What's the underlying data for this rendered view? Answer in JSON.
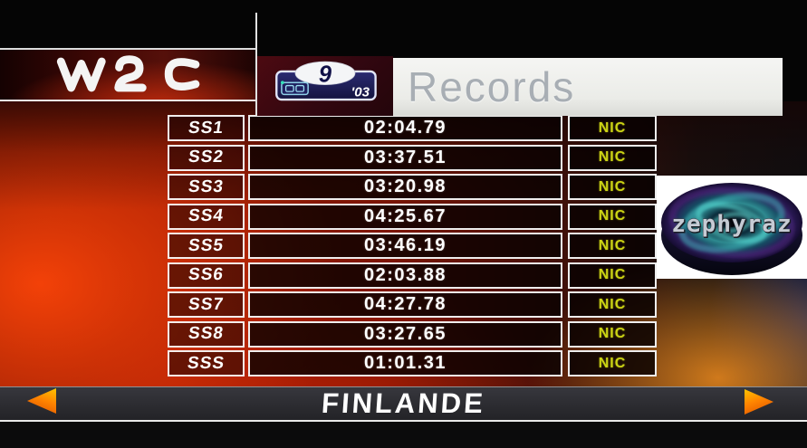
{
  "header": {
    "wrc_logo_label": "WRC",
    "section_title": "Records",
    "rally_plate": {
      "number": "9",
      "year": "'03"
    }
  },
  "records_table": {
    "rows": [
      {
        "stage": "SS1",
        "time": "02:04.79",
        "holder": "NIC"
      },
      {
        "stage": "SS2",
        "time": "03:37.51",
        "holder": "NIC"
      },
      {
        "stage": "SS3",
        "time": "03:20.98",
        "holder": "NIC"
      },
      {
        "stage": "SS4",
        "time": "04:25.67",
        "holder": "NIC"
      },
      {
        "stage": "SS5",
        "time": "03:46.19",
        "holder": "NIC"
      },
      {
        "stage": "SS6",
        "time": "02:03.88",
        "holder": "NIC"
      },
      {
        "stage": "SS7",
        "time": "04:27.78",
        "holder": "NIC"
      },
      {
        "stage": "SS8",
        "time": "03:27.65",
        "holder": "NIC"
      },
      {
        "stage": "SSS",
        "time": "01:01.31",
        "holder": "NIC"
      }
    ]
  },
  "footer": {
    "rally_name": "FINLANDE"
  },
  "watermark": {
    "text": "zephyraz"
  },
  "icons": {
    "prev": "left-triangle-arrow",
    "next": "right-triangle-arrow",
    "wrc": "wrc-wordmark",
    "plate": "rally-number-plate"
  },
  "colors": {
    "accent_yellow": "#ccd414",
    "arrow_orange": "#ff8400",
    "records_text_gray": "#a8aeb4",
    "plate_blue": "#1d1d52",
    "bright_red": "#e84600"
  }
}
